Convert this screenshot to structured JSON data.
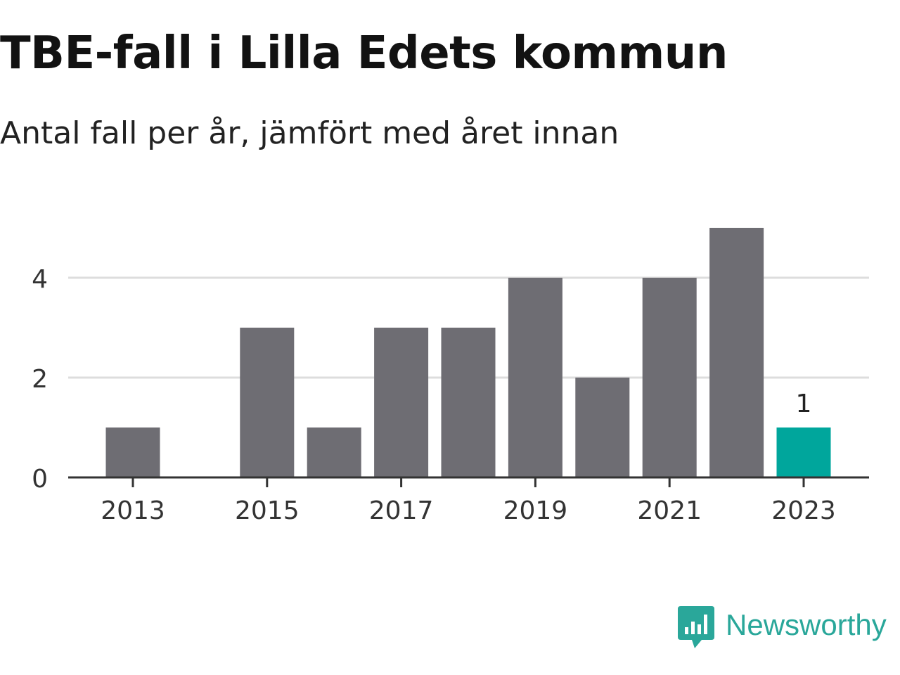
{
  "title": "TBE-fall i Lilla Edets kommun",
  "subtitle": "Antal fall per år, jämfört med året innan",
  "brand": {
    "name": "Newsworthy",
    "icon": "newsworthy-logo-icon",
    "color": "#2aa79a"
  },
  "colors": {
    "bar": "#6e6d73",
    "highlight": "#00a69c",
    "grid": "#dddddd",
    "axis": "#333333",
    "text": "#333333"
  },
  "chart_data": {
    "type": "bar",
    "categories": [
      "2013",
      "2014",
      "2015",
      "2016",
      "2017",
      "2018",
      "2019",
      "2020",
      "2021",
      "2022",
      "2023"
    ],
    "values": [
      1,
      0,
      3,
      1,
      3,
      3,
      4,
      2,
      4,
      5,
      1
    ],
    "x_tick_labels": [
      "2013",
      "2015",
      "2017",
      "2019",
      "2021",
      "2023"
    ],
    "y_ticks": [
      0,
      2,
      4
    ],
    "ylim": [
      0,
      5
    ],
    "highlight_category": "2023",
    "data_labels": [
      {
        "category": "2023",
        "text": "1"
      }
    ],
    "grid": true,
    "xlabel": "",
    "ylabel": ""
  }
}
